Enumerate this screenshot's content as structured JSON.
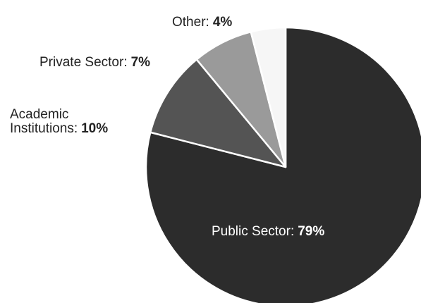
{
  "chart_data": {
    "type": "pie",
    "slices": [
      {
        "label": "Public Sector",
        "value": 79,
        "display": "79%",
        "color": "#2c2c2c"
      },
      {
        "label": "Academic Institutions",
        "label_lines": [
          "Academic",
          "Institutions"
        ],
        "value": 10,
        "display": "10%",
        "color": "#545454"
      },
      {
        "label": "Private Sector",
        "value": 7,
        "display": "7%",
        "color": "#9a9a9a"
      },
      {
        "label": "Other",
        "value": 4,
        "display": "4%",
        "color": "#f6f6f6"
      }
    ],
    "label_separator": ": ",
    "legend": "none"
  }
}
